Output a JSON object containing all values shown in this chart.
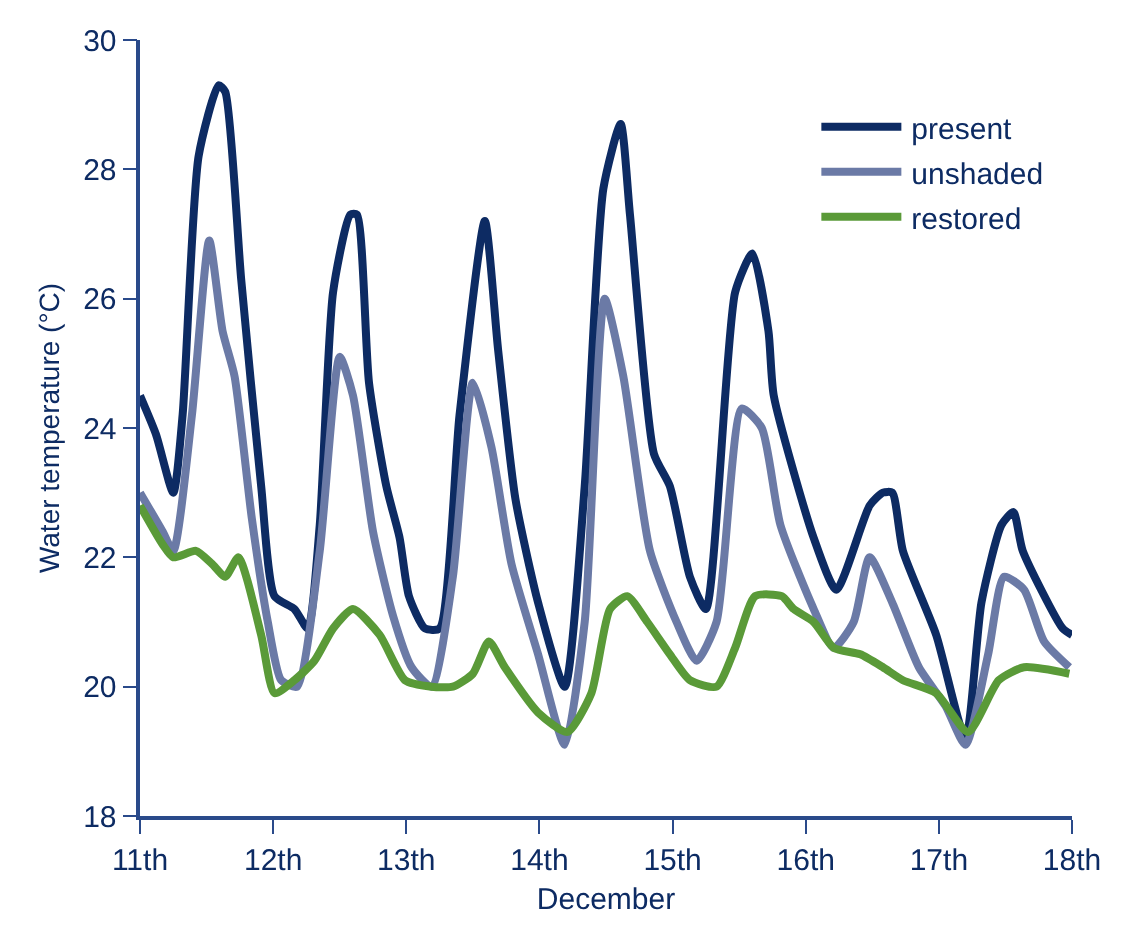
{
  "chart_data": {
    "type": "line",
    "xlabel": "December",
    "ylabel": "Water temperature (°C)",
    "xlim": [
      11,
      18
    ],
    "xticks": [
      {
        "value": 11,
        "label": "11th"
      },
      {
        "value": 12,
        "label": "12th"
      },
      {
        "value": 13,
        "label": "13th"
      },
      {
        "value": 14,
        "label": "14th"
      },
      {
        "value": 15,
        "label": "15th"
      },
      {
        "value": 16,
        "label": "16th"
      },
      {
        "value": 17,
        "label": "17th"
      },
      {
        "value": 18,
        "label": "18th"
      }
    ],
    "ylim": [
      18,
      30
    ],
    "yticks": [
      18,
      20,
      22,
      24,
      26,
      28,
      30
    ],
    "grid": false,
    "legend": "top right",
    "marker": "none",
    "line_style": "solid",
    "series": [
      {
        "name": "present",
        "color": "#0d2b63",
        "x": [
          11,
          11.12,
          11.25,
          11.32,
          11.44,
          11.59,
          11.64,
          11.76,
          11.91,
          12.01,
          12.16,
          12.26,
          12.35,
          12.45,
          12.58,
          12.63,
          12.72,
          12.85,
          12.95,
          13.02,
          13.14,
          13.25,
          13.4,
          13.59,
          13.69,
          13.82,
          13.99,
          14.19,
          14.34,
          14.48,
          14.61,
          14.68,
          14.86,
          14.98,
          15.13,
          15.25,
          15.47,
          15.6,
          15.72,
          15.76,
          16.06,
          16.23,
          16.48,
          16.58,
          16.65,
          16.73,
          16.98,
          17.2,
          17.32,
          17.47,
          17.56,
          17.63,
          17.93,
          18
        ],
        "values": [
          24.5,
          23.9,
          23.0,
          24.2,
          28.2,
          29.3,
          29.2,
          26.3,
          23.1,
          21.4,
          21.2,
          20.9,
          22.5,
          26.1,
          27.3,
          27.3,
          24.7,
          23.1,
          22.3,
          21.4,
          20.9,
          20.9,
          24.2,
          27.2,
          25.2,
          22.9,
          21.3,
          20.0,
          23.1,
          27.7,
          28.7,
          27.3,
          23.6,
          23.1,
          21.7,
          21.2,
          26.1,
          26.7,
          25.5,
          24.5,
          22.3,
          21.5,
          22.8,
          23.0,
          23.0,
          22.1,
          20.8,
          19.2,
          21.3,
          22.5,
          22.7,
          22.1,
          20.9,
          20.8
        ]
      },
      {
        "name": "unshaded",
        "color": "#6b7aa6",
        "x": [
          11,
          11.17,
          11.25,
          11.39,
          11.52,
          11.62,
          11.71,
          11.84,
          11.96,
          12.06,
          12.18,
          12.35,
          12.5,
          12.6,
          12.75,
          12.9,
          13.04,
          13.19,
          13.35,
          13.5,
          13.64,
          13.79,
          13.99,
          14.19,
          14.34,
          14.49,
          14.63,
          14.83,
          15.03,
          15.18,
          15.33,
          15.52,
          15.67,
          15.81,
          16.06,
          16.21,
          16.36,
          16.48,
          16.65,
          16.85,
          17.05,
          17.2,
          17.37,
          17.49,
          17.64,
          17.79,
          17.98
        ],
        "values": [
          23.0,
          22.4,
          22.1,
          24.2,
          26.9,
          25.5,
          24.8,
          22.6,
          21.0,
          20.1,
          20.0,
          22.1,
          25.1,
          24.5,
          22.4,
          21.1,
          20.3,
          20.0,
          21.7,
          24.7,
          23.7,
          21.9,
          20.5,
          19.1,
          21.0,
          26.0,
          24.8,
          22.1,
          21.0,
          20.4,
          21.0,
          24.3,
          24.0,
          22.5,
          21.2,
          20.6,
          21.0,
          22.0,
          21.3,
          20.3,
          19.7,
          19.1,
          20.5,
          21.7,
          21.5,
          20.7,
          20.3
        ]
      },
      {
        "name": "restored",
        "color": "#5a9a38",
        "x": [
          11,
          11.17,
          11.25,
          11.42,
          11.54,
          11.64,
          11.74,
          11.91,
          12.01,
          12.16,
          12.31,
          12.45,
          12.6,
          12.8,
          12.99,
          13.19,
          13.35,
          13.5,
          13.62,
          13.74,
          13.99,
          14.21,
          14.39,
          14.53,
          14.66,
          14.81,
          14.98,
          15.13,
          15.33,
          15.47,
          15.62,
          15.82,
          15.91,
          16.06,
          16.21,
          16.41,
          16.58,
          16.73,
          16.98,
          17.22,
          17.45,
          17.64,
          17.98
        ],
        "values": [
          22.8,
          22.2,
          22.0,
          22.1,
          21.9,
          21.7,
          22.0,
          20.8,
          19.9,
          20.1,
          20.4,
          20.9,
          21.2,
          20.8,
          20.1,
          20.0,
          20.0,
          20.2,
          20.7,
          20.3,
          19.6,
          19.3,
          19.9,
          21.2,
          21.4,
          21.0,
          20.5,
          20.1,
          20.0,
          20.6,
          21.4,
          21.4,
          21.2,
          21.0,
          20.6,
          20.5,
          20.3,
          20.1,
          19.9,
          19.3,
          20.1,
          20.3,
          20.2
        ]
      }
    ]
  }
}
